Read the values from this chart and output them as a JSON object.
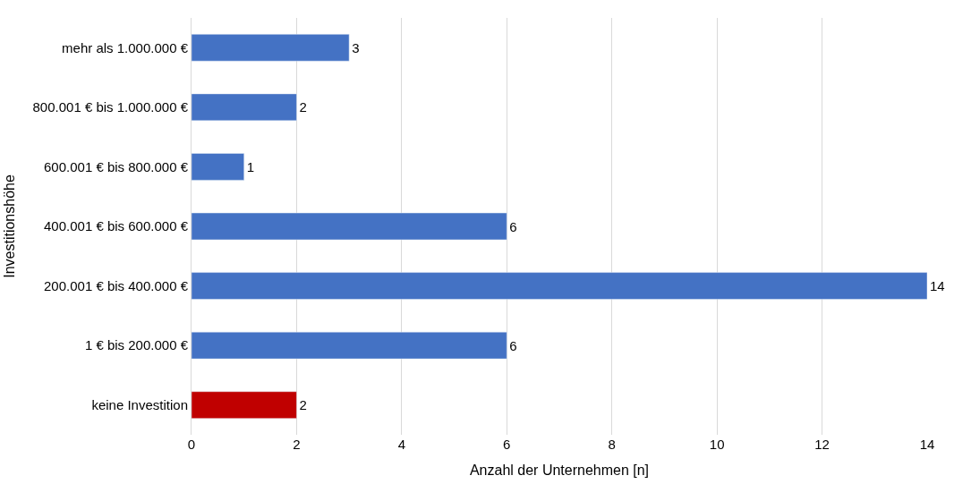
{
  "chart_data": {
    "type": "bar",
    "orientation": "horizontal",
    "xlabel": "Anzahl der Unternehmen [n]",
    "ylabel": "Investitionshöhe",
    "categories": [
      "mehr als 1.000.000 €",
      "800.001 € bis 1.000.000 €",
      "600.001 € bis 800.000 €",
      "400.001 € bis 600.000 €",
      "200.001 € bis 400.000 €",
      "1 € bis 200.000 €",
      "keine Investition"
    ],
    "values": [
      3,
      2,
      1,
      6,
      14,
      6,
      2
    ],
    "colors": [
      "#4472c4",
      "#4472c4",
      "#4472c4",
      "#4472c4",
      "#4472c4",
      "#4472c4",
      "#c00000"
    ],
    "xlim": [
      0,
      14
    ],
    "xticks": [
      0,
      2,
      4,
      6,
      8,
      10,
      12,
      14
    ],
    "grid": "x",
    "data_labels": true
  }
}
